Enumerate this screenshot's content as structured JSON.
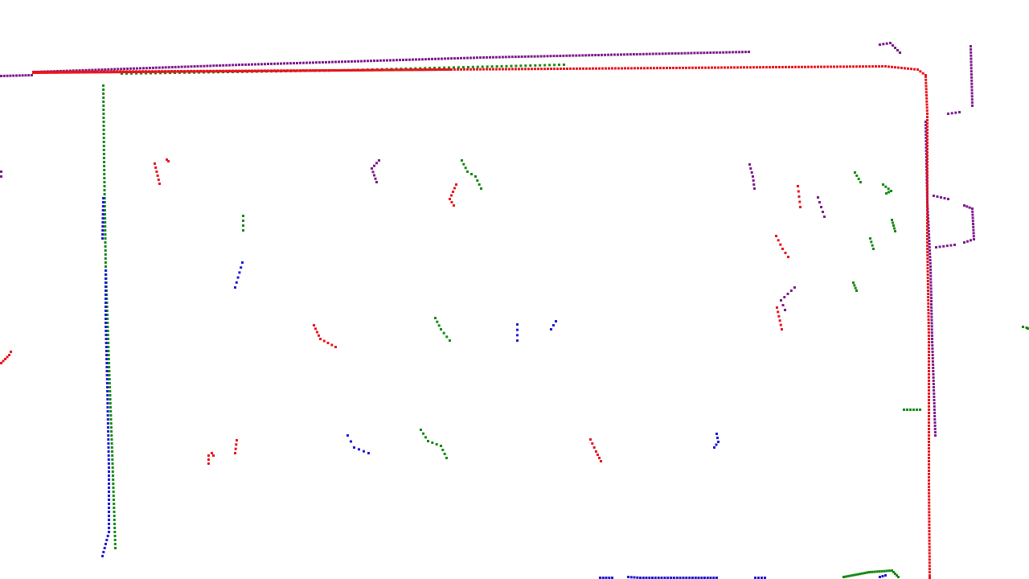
{
  "scan": {
    "colors": {
      "red": "#e8141c",
      "green": "#138a13",
      "blue": "#1b1bd6",
      "purple": "#7d1a8c"
    },
    "point_size": 3
  },
  "legend": {
    "red": "",
    "green": "",
    "blue": "",
    "purple": ""
  }
}
